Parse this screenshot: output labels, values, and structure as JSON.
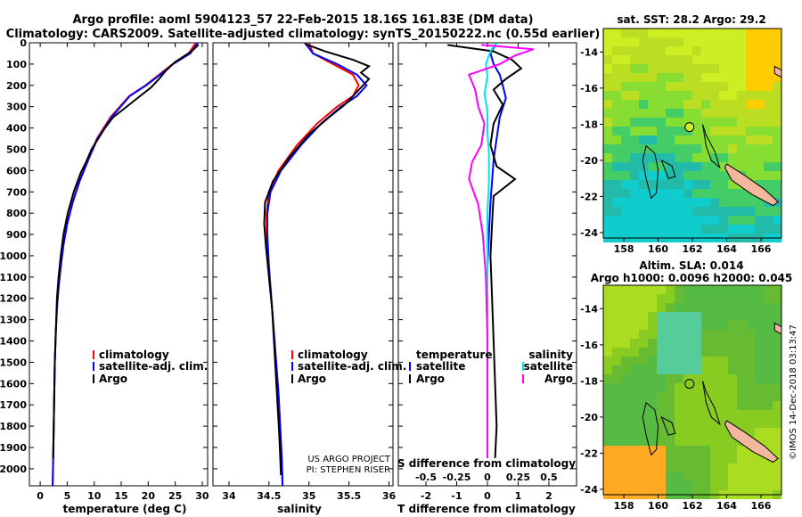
{
  "header": {
    "line1": "Argo profile: aoml 5904123_57 22-Feb-2015 18.16S 161.83E (DM data)",
    "line2": "Climatology: CARS2009. Satellite-adjusted climatology: synTS_20150222.nc (0.55d earlier)"
  },
  "colors": {
    "climatology": "#ff0000",
    "satellite": "#0000ff",
    "argo": "#000000",
    "salinity_satellite": "#00e5e5",
    "salinity_argo": "#ff00ff",
    "land": "#f2b79c"
  },
  "chart_data": [
    {
      "type": "line",
      "panel": "temperature",
      "xlabel": "temperature (deg C)",
      "xlim": [
        -2,
        31
      ],
      "xticks": [
        "0",
        "5",
        "10",
        "15",
        "20",
        "25",
        "30"
      ],
      "xtick_values": [
        0,
        5,
        10,
        15,
        20,
        25,
        30
      ],
      "ylim": [
        0,
        2080
      ],
      "yticks": [
        "0",
        "100",
        "200",
        "300",
        "400",
        "500",
        "600",
        "700",
        "800",
        "900",
        "1000",
        "1100",
        "1200",
        "1300",
        "1400",
        "1500",
        "1600",
        "1700",
        "1800",
        "1900",
        "2000"
      ],
      "ytick_values": [
        0,
        100,
        200,
        300,
        400,
        500,
        600,
        700,
        800,
        900,
        1000,
        1100,
        1200,
        1300,
        1400,
        1500,
        1600,
        1700,
        1800,
        1900,
        2000
      ],
      "y_reversed": true,
      "legend": [
        "climatology",
        "satellite-adj. clim.",
        "Argo"
      ],
      "series": [
        {
          "name": "climatology",
          "color_key": "climatology",
          "x": [
            28.8,
            27.5,
            24.5,
            22.0,
            19.5,
            16.5,
            13.0,
            10.5,
            8.8,
            7.2,
            6.0,
            5.0,
            4.3,
            3.8,
            3.4,
            3.1,
            2.9,
            2.7,
            2.6,
            2.5,
            2.4,
            2.3
          ],
          "y": [
            0,
            50,
            100,
            150,
            200,
            250,
            350,
            450,
            550,
            650,
            750,
            850,
            950,
            1050,
            1150,
            1250,
            1350,
            1500,
            1650,
            1800,
            1950,
            2080
          ]
        },
        {
          "name": "satellite-adj. clim.",
          "color_key": "satellite",
          "x": [
            29.2,
            27.8,
            24.6,
            22.2,
            19.6,
            16.6,
            13.2,
            10.6,
            8.9,
            7.3,
            6.0,
            5.0,
            4.3,
            3.8,
            3.4,
            3.1,
            2.9,
            2.7,
            2.6,
            2.5,
            2.4,
            2.3
          ],
          "y": [
            0,
            50,
            100,
            150,
            200,
            250,
            350,
            450,
            550,
            650,
            750,
            850,
            950,
            1050,
            1150,
            1250,
            1350,
            1500,
            1650,
            1800,
            1950,
            2080
          ]
        },
        {
          "name": "Argo",
          "color_key": "argo",
          "x": [
            29.3,
            28.0,
            25.0,
            23.3,
            22.0,
            20.5,
            18.0,
            15.5,
            13.5,
            12.0,
            11.0,
            9.5,
            8.5,
            7.5,
            6.2,
            5.1,
            4.3,
            3.8,
            3.4,
            3.1,
            2.9,
            2.7,
            2.6,
            2.5,
            2.4
          ],
          "y": [
            10,
            40,
            90,
            130,
            170,
            210,
            260,
            310,
            350,
            400,
            440,
            500,
            560,
            610,
            700,
            800,
            900,
            1000,
            1100,
            1200,
            1350,
            1500,
            1650,
            1800,
            1950
          ]
        }
      ]
    },
    {
      "type": "line",
      "panel": "salinity",
      "xlabel": "salinity",
      "xlim": [
        33.8,
        36.05
      ],
      "xticks": [
        "34",
        "34.5",
        "35",
        "35.5",
        "36"
      ],
      "xtick_values": [
        34,
        34.5,
        35,
        35.5,
        36
      ],
      "ylim": [
        0,
        2080
      ],
      "y_reversed": true,
      "legend": [
        "climatology",
        "satellite-adj. clim.",
        "Argo"
      ],
      "annotation": [
        "US ARGO PROJECT",
        "PI: STEPHEN RISER"
      ],
      "series": [
        {
          "name": "climatology",
          "color_key": "climatology",
          "x": [
            35.0,
            35.05,
            35.3,
            35.55,
            35.62,
            35.55,
            35.35,
            35.1,
            34.85,
            34.62,
            34.5,
            34.47,
            34.47,
            34.5,
            34.53,
            34.56,
            34.59,
            34.62,
            34.64,
            34.66,
            34.67
          ],
          "y": [
            0,
            50,
            100,
            150,
            200,
            250,
            300,
            380,
            480,
            600,
            700,
            800,
            900,
            1050,
            1200,
            1350,
            1500,
            1650,
            1800,
            1950,
            2080
          ]
        },
        {
          "name": "satellite-adj. clim.",
          "color_key": "satellite",
          "x": [
            34.95,
            35.05,
            35.35,
            35.6,
            35.72,
            35.6,
            35.4,
            35.15,
            34.9,
            34.65,
            34.52,
            34.48,
            34.48,
            34.5,
            34.53,
            34.56,
            34.59,
            34.62,
            34.64,
            34.66,
            34.67
          ],
          "y": [
            0,
            50,
            100,
            150,
            200,
            250,
            300,
            380,
            480,
            600,
            700,
            800,
            900,
            1050,
            1200,
            1350,
            1500,
            1650,
            1800,
            1950,
            2080
          ]
        },
        {
          "name": "Argo",
          "color_key": "argo",
          "x": [
            34.95,
            35.2,
            35.55,
            35.75,
            35.65,
            35.75,
            35.6,
            35.45,
            35.25,
            35.0,
            34.75,
            34.55,
            34.45,
            34.44,
            34.46,
            34.5,
            34.54,
            34.57,
            34.6,
            34.63,
            34.65
          ],
          "y": [
            5,
            40,
            80,
            110,
            140,
            170,
            230,
            290,
            350,
            430,
            540,
            650,
            750,
            850,
            950,
            1100,
            1250,
            1450,
            1650,
            1850,
            2030
          ]
        }
      ]
    },
    {
      "type": "line",
      "panel": "difference",
      "xlabel": "T difference from climatology",
      "xlabel_top": "S difference from climatology",
      "xlim": [
        -2.9,
        2.9
      ],
      "xticks": [
        "-2",
        "-1",
        "0",
        "1",
        "2"
      ],
      "xtick_values": [
        -2,
        -1,
        0,
        1,
        2
      ],
      "xticks_s": [
        "-0.5",
        "-0.25",
        "0",
        "0.25",
        "0.5"
      ],
      "xtick_values_s": [
        -0.5,
        -0.25,
        0,
        0.25,
        0.5
      ],
      "y_reversed": true,
      "ylim": [
        0,
        2080
      ],
      "legend_left_title": "temperature",
      "legend_left": [
        "satellite",
        "Argo"
      ],
      "legend_right_title": "salinity",
      "legend_right": [
        "satellite",
        "Argo"
      ],
      "series": [
        {
          "name": "T satellite",
          "color_key": "satellite",
          "x": [
            0.3,
            0.1,
            0.2,
            0.4,
            0.5,
            0.6,
            0.4,
            0.3,
            0.2,
            0.15,
            0.1,
            0.05,
            0.0,
            0.0,
            0.0,
            0.0,
            0.0,
            0.0
          ],
          "y": [
            0,
            50,
            100,
            150,
            200,
            260,
            350,
            450,
            550,
            650,
            750,
            900,
            1050,
            1200,
            1400,
            1600,
            1800,
            1950
          ]
        },
        {
          "name": "T Argo",
          "color_key": "argo",
          "x": [
            -1.3,
            0.2,
            0.8,
            1.1,
            0.6,
            0.2,
            0.5,
            0.2,
            0.1,
            0.3,
            0.9,
            0.2,
            0.15,
            0.1,
            0.15,
            0.2,
            0.25,
            0.3,
            0.25
          ],
          "y": [
            10,
            40,
            80,
            120,
            170,
            220,
            290,
            380,
            480,
            580,
            640,
            720,
            850,
            1000,
            1200,
            1400,
            1600,
            1800,
            1950
          ]
        },
        {
          "name": "S satellite",
          "color_key": "salinity_satellite",
          "x": [
            0.3,
            0.1,
            -0.05,
            0.0,
            -0.1,
            0.0,
            0.0,
            0.05,
            0.05,
            0.0,
            0.0,
            0.0,
            0.0,
            0.0
          ],
          "y": [
            0,
            40,
            100,
            160,
            240,
            320,
            420,
            520,
            650,
            800,
            1000,
            1300,
            1600,
            1950
          ]
        },
        {
          "name": "S Argo",
          "color_key": "salinity_argo",
          "x": [
            -0.2,
            1.5,
            0.9,
            0.4,
            -0.6,
            -0.4,
            -0.3,
            -0.1,
            -0.2,
            -0.5,
            -0.6,
            -0.3,
            -0.15,
            -0.05,
            0.0,
            0.0,
            0.0
          ],
          "y": [
            10,
            30,
            60,
            100,
            150,
            220,
            300,
            380,
            480,
            560,
            640,
            760,
            900,
            1100,
            1400,
            1700,
            1950
          ]
        }
      ]
    },
    {
      "type": "heatmap",
      "panel": "sst_map",
      "title": "sat. SST: 28.2 Argo: 29.2",
      "xticks": [
        "158",
        "160",
        "162",
        "164",
        "166"
      ],
      "xtick_values": [
        158,
        160,
        162,
        164,
        166
      ],
      "yticks": [
        "-14",
        "-16",
        "-18",
        "-20",
        "-22",
        "-24"
      ],
      "ytick_values": [
        -14,
        -16,
        -18,
        -20,
        -22,
        -24
      ],
      "xlim": [
        156.8,
        167.2
      ],
      "ylim": [
        -24.3,
        -12.7
      ],
      "float_position": [
        161.83,
        -18.16
      ]
    },
    {
      "type": "heatmap",
      "panel": "sla_map",
      "title_line1": "Altim. SLA: 0.014",
      "title_line2": "Argo h1000: 0.0096 h2000: 0.045",
      "xticks": [
        "158",
        "160",
        "162",
        "164",
        "166"
      ],
      "xtick_values": [
        158,
        160,
        162,
        164,
        166
      ],
      "yticks": [
        "-14",
        "-16",
        "-18",
        "-20",
        "-22",
        "-24"
      ],
      "ytick_values": [
        -14,
        -16,
        -18,
        -20,
        -22,
        -24
      ],
      "xlim": [
        156.8,
        167.2
      ],
      "ylim": [
        -24.3,
        -12.7
      ],
      "float_position": [
        161.83,
        -18.16
      ],
      "credit": "©IMOS 14-Dec-2018 03:13:47"
    }
  ]
}
